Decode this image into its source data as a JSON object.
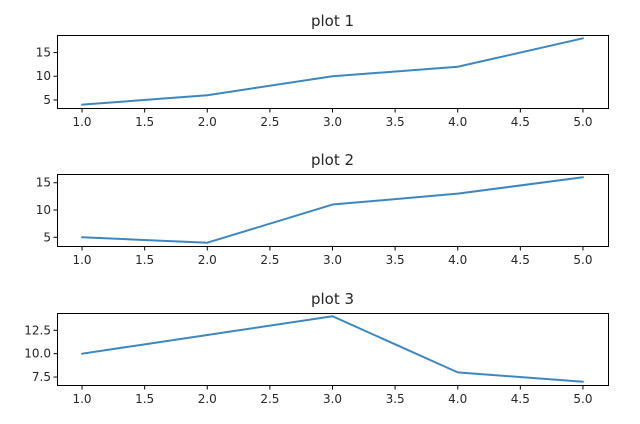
{
  "chart_data": [
    {
      "type": "line",
      "title": "plot 1",
      "x": [
        1,
        2,
        3,
        4,
        5
      ],
      "series": [
        {
          "values": [
            4,
            6,
            10,
            12,
            18
          ]
        }
      ],
      "xlim": [
        0.8,
        5.2
      ],
      "ylim": [
        3.3,
        18.7
      ],
      "xticks": [
        "1.0",
        "1.5",
        "2.0",
        "2.5",
        "3.0",
        "3.5",
        "4.0",
        "4.5",
        "5.0"
      ],
      "yticks": [
        "5",
        "10",
        "15"
      ],
      "xlabel": "",
      "ylabel": "",
      "grid": false,
      "line_color": "#3d87c0"
    },
    {
      "type": "line",
      "title": "plot 2",
      "x": [
        1,
        2,
        3,
        4,
        5
      ],
      "series": [
        {
          "values": [
            5,
            4,
            11,
            13,
            16
          ]
        }
      ],
      "xlim": [
        0.8,
        5.2
      ],
      "ylim": [
        3.4,
        16.6
      ],
      "xticks": [
        "1.0",
        "1.5",
        "2.0",
        "2.5",
        "3.0",
        "3.5",
        "4.0",
        "4.5",
        "5.0"
      ],
      "yticks": [
        "5",
        "10",
        "15"
      ],
      "xlabel": "",
      "ylabel": "",
      "grid": false,
      "line_color": "#3d87c0"
    },
    {
      "type": "line",
      "title": "plot 3",
      "x": [
        1,
        2,
        3,
        4,
        5
      ],
      "series": [
        {
          "values": [
            10,
            12,
            14,
            8,
            7
          ]
        }
      ],
      "xlim": [
        0.8,
        5.2
      ],
      "ylim": [
        6.65,
        14.35
      ],
      "xticks": [
        "1.0",
        "1.5",
        "2.0",
        "2.5",
        "3.0",
        "3.5",
        "4.0",
        "4.5",
        "5.0"
      ],
      "yticks": [
        "7.5",
        "10.0",
        "12.5"
      ],
      "xlabel": "",
      "ylabel": "",
      "grid": false,
      "line_color": "#3d87c0"
    }
  ]
}
